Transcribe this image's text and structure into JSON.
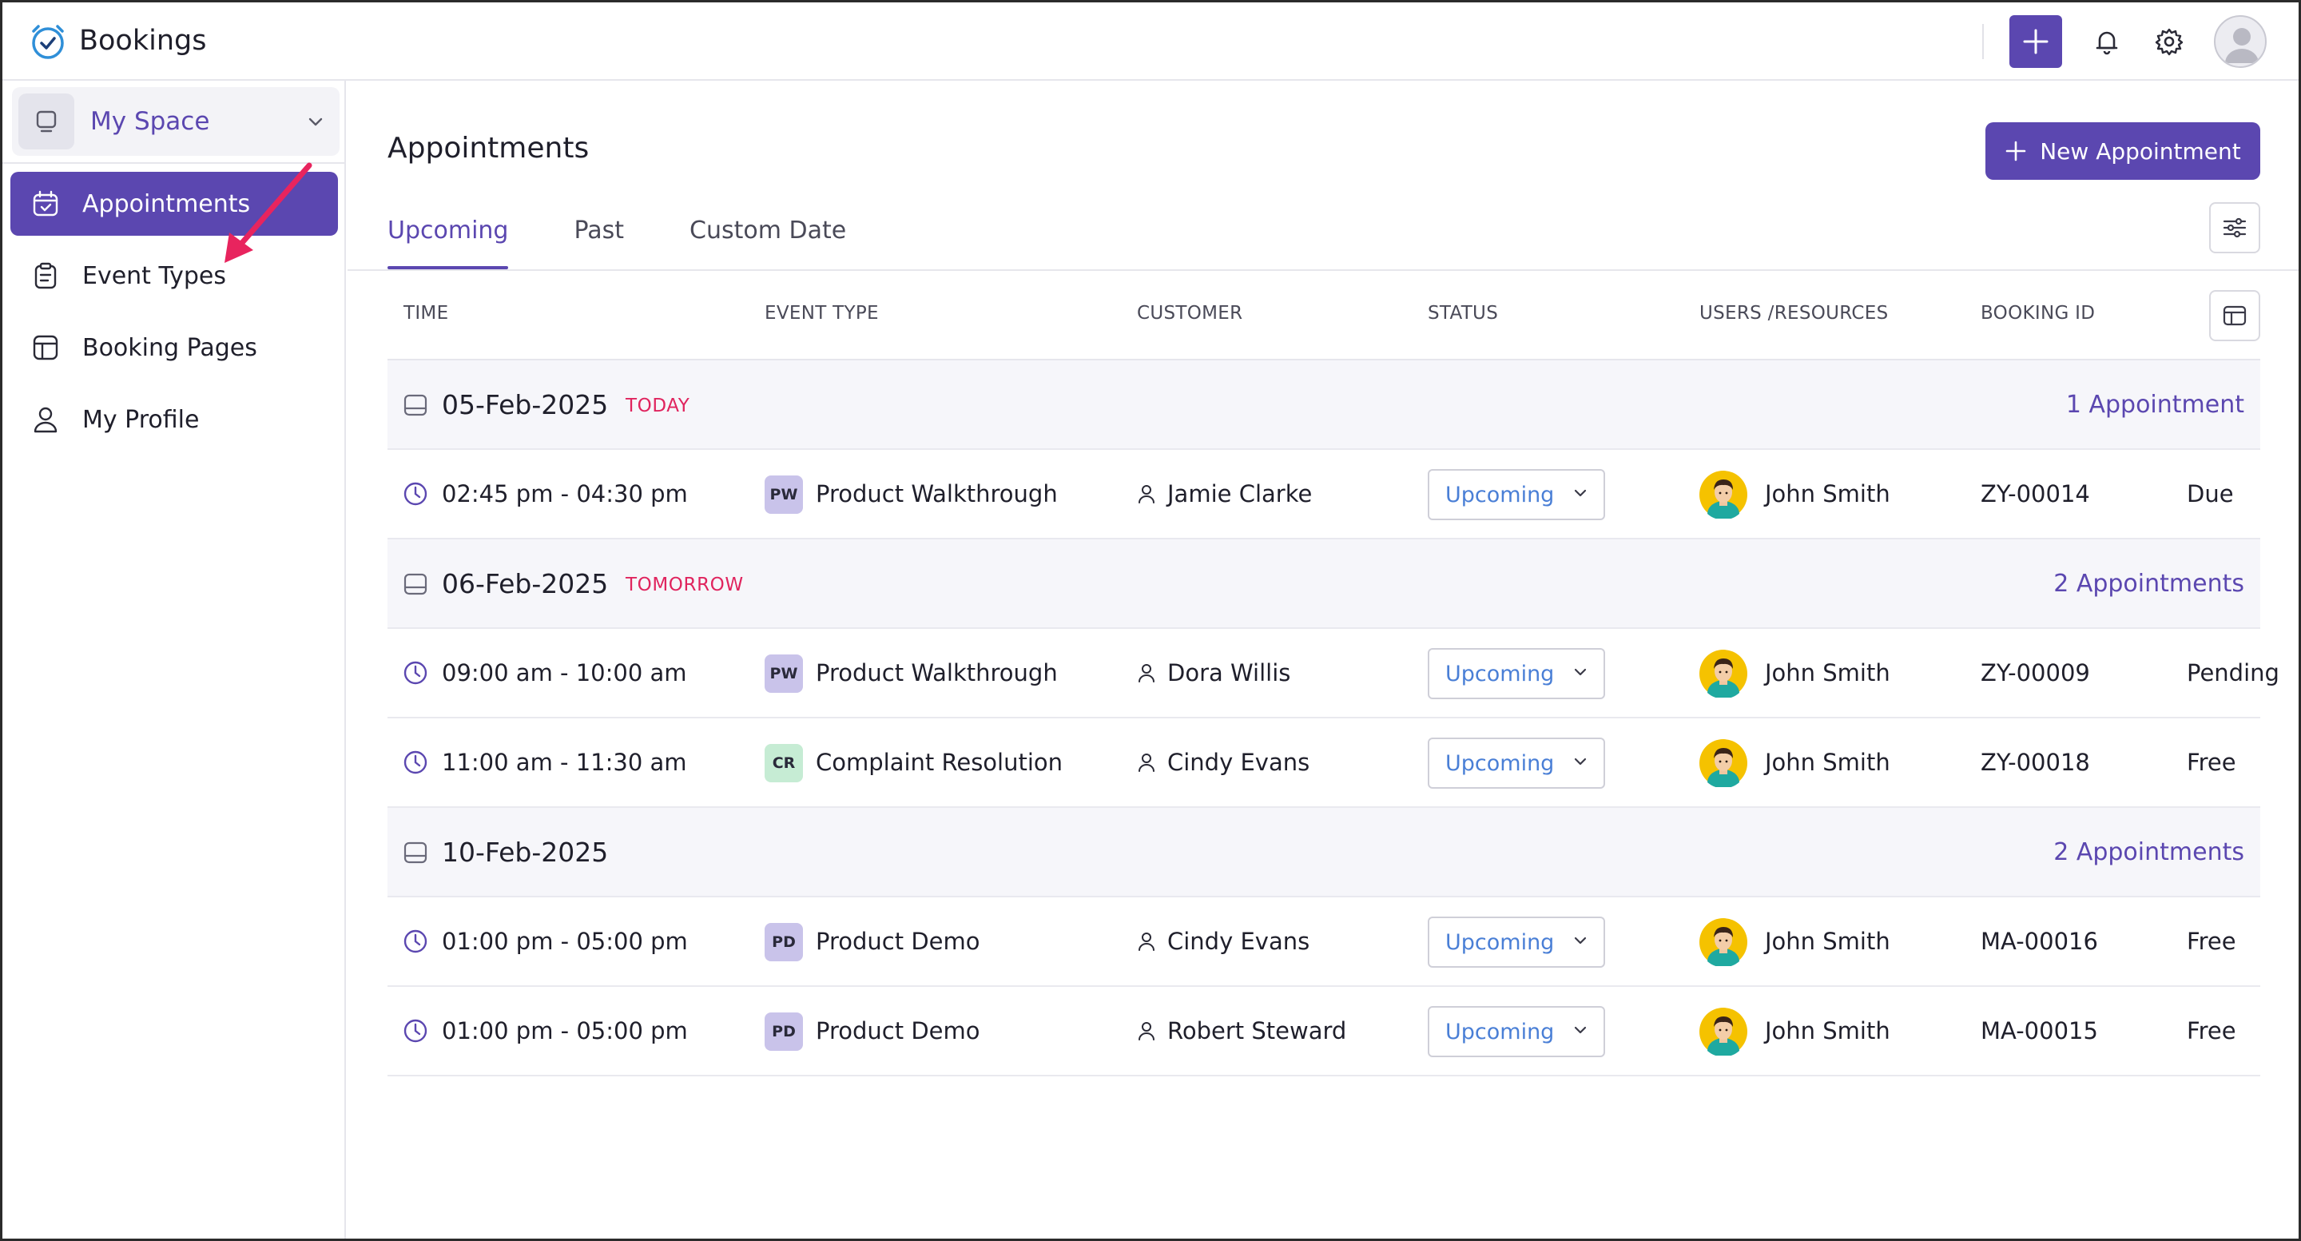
{
  "app": {
    "title": "Bookings"
  },
  "sidebar": {
    "space": {
      "label": "My Space"
    },
    "items": [
      {
        "label": "Appointments",
        "icon": "calendar-check-icon",
        "active": true
      },
      {
        "label": "Event Types",
        "icon": "clipboard-icon",
        "active": false
      },
      {
        "label": "Booking Pages",
        "icon": "layout-icon",
        "active": false
      },
      {
        "label": "My Profile",
        "icon": "user-icon",
        "active": false
      }
    ]
  },
  "main": {
    "title": "Appointments",
    "new_button": "New Appointment",
    "tabs": [
      {
        "label": "Upcoming",
        "active": true
      },
      {
        "label": "Past",
        "active": false
      },
      {
        "label": "Custom Date",
        "active": false
      }
    ]
  },
  "table": {
    "headers": {
      "time": "TIME",
      "event_type": "EVENT TYPE",
      "customer": "CUSTOMER",
      "status": "STATUS",
      "users": "USERS /RESOURCES",
      "booking_id": "BOOKING ID"
    },
    "groups": [
      {
        "date": "05-Feb-2025",
        "tag": "TODAY",
        "count": "1 Appointment",
        "rows": [
          {
            "time": "02:45 pm - 04:30 pm",
            "badge": "PW",
            "event": "Product Walkthrough",
            "customer": "Jamie Clarke",
            "status": "Upcoming",
            "user": "John Smith",
            "booking_id": "ZY-00014",
            "payment": "Due"
          }
        ]
      },
      {
        "date": "06-Feb-2025",
        "tag": "TOMORROW",
        "count": "2 Appointments",
        "rows": [
          {
            "time": "09:00 am - 10:00 am",
            "badge": "PW",
            "event": "Product Walkthrough",
            "customer": "Dora Willis",
            "status": "Upcoming",
            "user": "John Smith",
            "booking_id": "ZY-00009",
            "payment": "Pending"
          },
          {
            "time": "11:00 am - 11:30 am",
            "badge": "CR",
            "event": "Complaint Resolution",
            "customer": "Cindy Evans",
            "status": "Upcoming",
            "user": "John Smith",
            "booking_id": "ZY-00018",
            "payment": "Free"
          }
        ]
      },
      {
        "date": "10-Feb-2025",
        "tag": "",
        "count": "2 Appointments",
        "rows": [
          {
            "time": "01:00 pm - 05:00 pm",
            "badge": "PD",
            "event": "Product Demo",
            "customer": "Cindy Evans",
            "status": "Upcoming",
            "user": "John Smith",
            "booking_id": "MA-00016",
            "payment": "Free"
          },
          {
            "time": "01:00 pm - 05:00 pm",
            "badge": "PD",
            "event": "Product Demo",
            "customer": "Robert Steward",
            "status": "Upcoming",
            "user": "John Smith",
            "booking_id": "MA-00015",
            "payment": "Free"
          }
        ]
      }
    ]
  },
  "colors": {
    "accent": "#5b47b0",
    "today_tag": "#e0245e",
    "status_text": "#4a7fd6",
    "arrow": "#e8245e"
  }
}
